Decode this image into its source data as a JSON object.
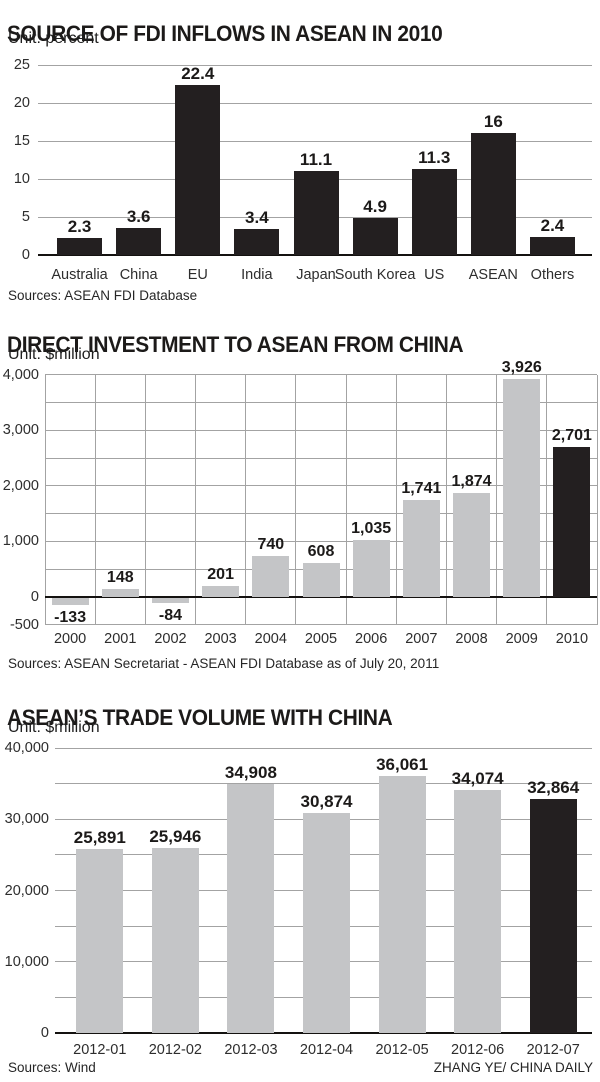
{
  "credit": "ZHANG YE/ CHINA DAILY",
  "chart_data": [
    {
      "type": "bar",
      "title": "SOURCE OF FDI INFLOWS IN ASEAN IN 2010",
      "unit": "Unit: percent",
      "source": "Sources: ASEAN FDI Database",
      "categories": [
        "Australia",
        "China",
        "EU",
        "India",
        "Japan",
        "South Korea",
        "US",
        "ASEAN",
        "Others"
      ],
      "values": [
        2.3,
        3.6,
        22.4,
        3.4,
        11.1,
        4.9,
        11.3,
        16,
        2.4
      ],
      "value_labels": [
        "2.3",
        "3.6",
        "22.4",
        "3.4",
        "11.1",
        "4.9",
        "11.3",
        "16",
        "2.4"
      ],
      "ylim": [
        0,
        25
      ],
      "ytick_values": [
        0,
        5,
        10,
        15,
        20,
        25
      ],
      "ytick_labels": [
        "0",
        "5",
        "10",
        "15",
        "20",
        "25"
      ],
      "grid_step": 5,
      "vertical_grid": false,
      "legend": "none",
      "bar_color": "#231f20",
      "highlight_index": null,
      "highlight_color": "#231f20"
    },
    {
      "type": "bar",
      "title": "DIRECT INVESTMENT TO ASEAN FROM CHINA",
      "unit": "Unit: $million",
      "source": "Sources: ASEAN Secretariat - ASEAN FDI Database as of July 20, 2011",
      "categories": [
        "2000",
        "2001",
        "2002",
        "2003",
        "2004",
        "2005",
        "2006",
        "2007",
        "2008",
        "2009",
        "2010"
      ],
      "values": [
        -133,
        148,
        -84,
        201,
        740,
        608,
        1035,
        1741,
        1874,
        3926,
        2701
      ],
      "value_labels": [
        "-133",
        "148",
        "-84",
        "201",
        "740",
        "608",
        "1,035",
        "1,741",
        "1,874",
        "3,926",
        "2,701"
      ],
      "ylim": [
        -500,
        4000
      ],
      "ytick_values": [
        4000,
        3000,
        2000,
        1000,
        0,
        -500
      ],
      "ytick_labels": [
        "4,000",
        "3,000",
        "2,000",
        "1,000",
        "0",
        "-500"
      ],
      "grid_step": 500,
      "vertical_grid": true,
      "legend": "none",
      "bar_color": "#c4c5c7",
      "highlight_index": 10,
      "highlight_color": "#231f20"
    },
    {
      "type": "bar",
      "title": "ASEAN’S TRADE VOLUME WITH CHINA",
      "unit": "Unit: $million",
      "source": "Sources: Wind",
      "categories": [
        "2012-01",
        "2012-02",
        "2012-03",
        "2012-04",
        "2012-05",
        "2012-06",
        "2012-07"
      ],
      "values": [
        25891,
        25946,
        34908,
        30874,
        36061,
        34074,
        32864
      ],
      "value_labels": [
        "25,891",
        "25,946",
        "34,908",
        "30,874",
        "36,061",
        "34,074",
        "32,864"
      ],
      "ylim": [
        0,
        40000
      ],
      "ytick_values": [
        0,
        10000,
        20000,
        30000,
        40000
      ],
      "ytick_labels": [
        "0",
        "10,000",
        "20,000",
        "30,000",
        "40,000"
      ],
      "grid_step": 5000,
      "vertical_grid": false,
      "legend": "none",
      "bar_color": "#c4c5c7",
      "highlight_index": 6,
      "highlight_color": "#231f20"
    }
  ]
}
